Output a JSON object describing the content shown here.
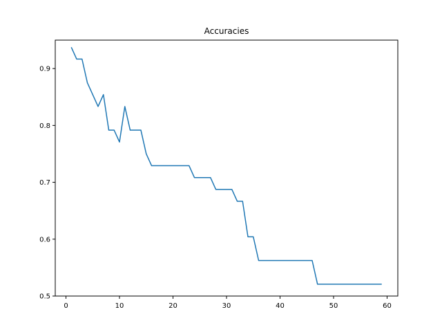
{
  "chart_data": {
    "type": "line",
    "title": "Accuracies",
    "xlabel": "",
    "ylabel": "",
    "xlim": [
      -2,
      62
    ],
    "ylim": [
      0.5,
      0.95
    ],
    "xticks": [
      0,
      10,
      20,
      30,
      40,
      50,
      60
    ],
    "yticks": [
      0.5,
      0.6,
      0.7,
      0.8,
      0.9
    ],
    "grid": false,
    "legend": "none",
    "series": [
      {
        "color": "#1f77b4",
        "x": [
          1,
          2,
          3,
          4,
          5,
          6,
          7,
          8,
          9,
          10,
          11,
          12,
          13,
          14,
          15,
          16,
          17,
          18,
          19,
          20,
          21,
          22,
          23,
          24,
          25,
          26,
          27,
          28,
          29,
          30,
          31,
          32,
          33,
          34,
          35,
          36,
          37,
          38,
          39,
          40,
          41,
          42,
          43,
          44,
          45,
          46,
          47,
          48,
          49,
          50,
          51,
          52,
          53,
          54,
          55,
          56,
          57,
          58,
          59
        ],
        "y": [
          0.9375,
          0.9167,
          0.9167,
          0.875,
          0.8542,
          0.8333,
          0.8542,
          0.7917,
          0.7917,
          0.7708,
          0.8333,
          0.7917,
          0.7917,
          0.7917,
          0.75,
          0.7292,
          0.7292,
          0.7292,
          0.7292,
          0.7292,
          0.7292,
          0.7292,
          0.7292,
          0.7083,
          0.7083,
          0.7083,
          0.7083,
          0.6875,
          0.6875,
          0.6875,
          0.6875,
          0.6667,
          0.6667,
          0.6042,
          0.6042,
          0.5625,
          0.5625,
          0.5625,
          0.5625,
          0.5625,
          0.5625,
          0.5625,
          0.5625,
          0.5625,
          0.5625,
          0.5625,
          0.5208,
          0.5208,
          0.5208,
          0.5208,
          0.5208,
          0.5208,
          0.5208,
          0.5208,
          0.5208,
          0.5208,
          0.5208,
          0.5208,
          0.5208
        ]
      }
    ]
  }
}
